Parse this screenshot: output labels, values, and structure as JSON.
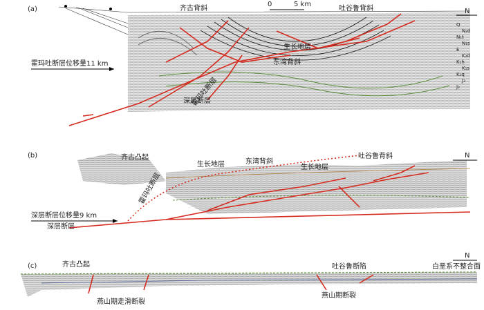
{
  "panel_a": {
    "label": "(a)",
    "scale_start": "0",
    "scale_end": "5 km",
    "north": "N",
    "labels": [
      "齐古背斜",
      "吐谷鲁背斜",
      "生长地层",
      "东湾背斜",
      "霍玛吐断层位移量11 km",
      "霍玛吐断层",
      "深层断层"
    ],
    "strata": [
      "Q",
      "N₂d",
      "N₁t",
      "N₁s",
      "E",
      "K₂d",
      "K₁h",
      "K₁s",
      "K₁q",
      "J₃",
      "J₂"
    ]
  },
  "panel_b": {
    "label": "(b)",
    "north": "N",
    "labels": [
      "齐古凸起",
      "生长地层",
      "东湾背斜",
      "生长地层",
      "吐谷鲁背斜",
      "霍玛吐断层",
      "深层断层位移量9 km",
      "深层断层"
    ]
  },
  "panel_c": {
    "label": "(c)",
    "north": "N",
    "labels": [
      "齐古凸起",
      "吐谷鲁断陷",
      "白垩系不整合面",
      "燕山期走滑断裂",
      "燕山期断裂"
    ]
  }
}
